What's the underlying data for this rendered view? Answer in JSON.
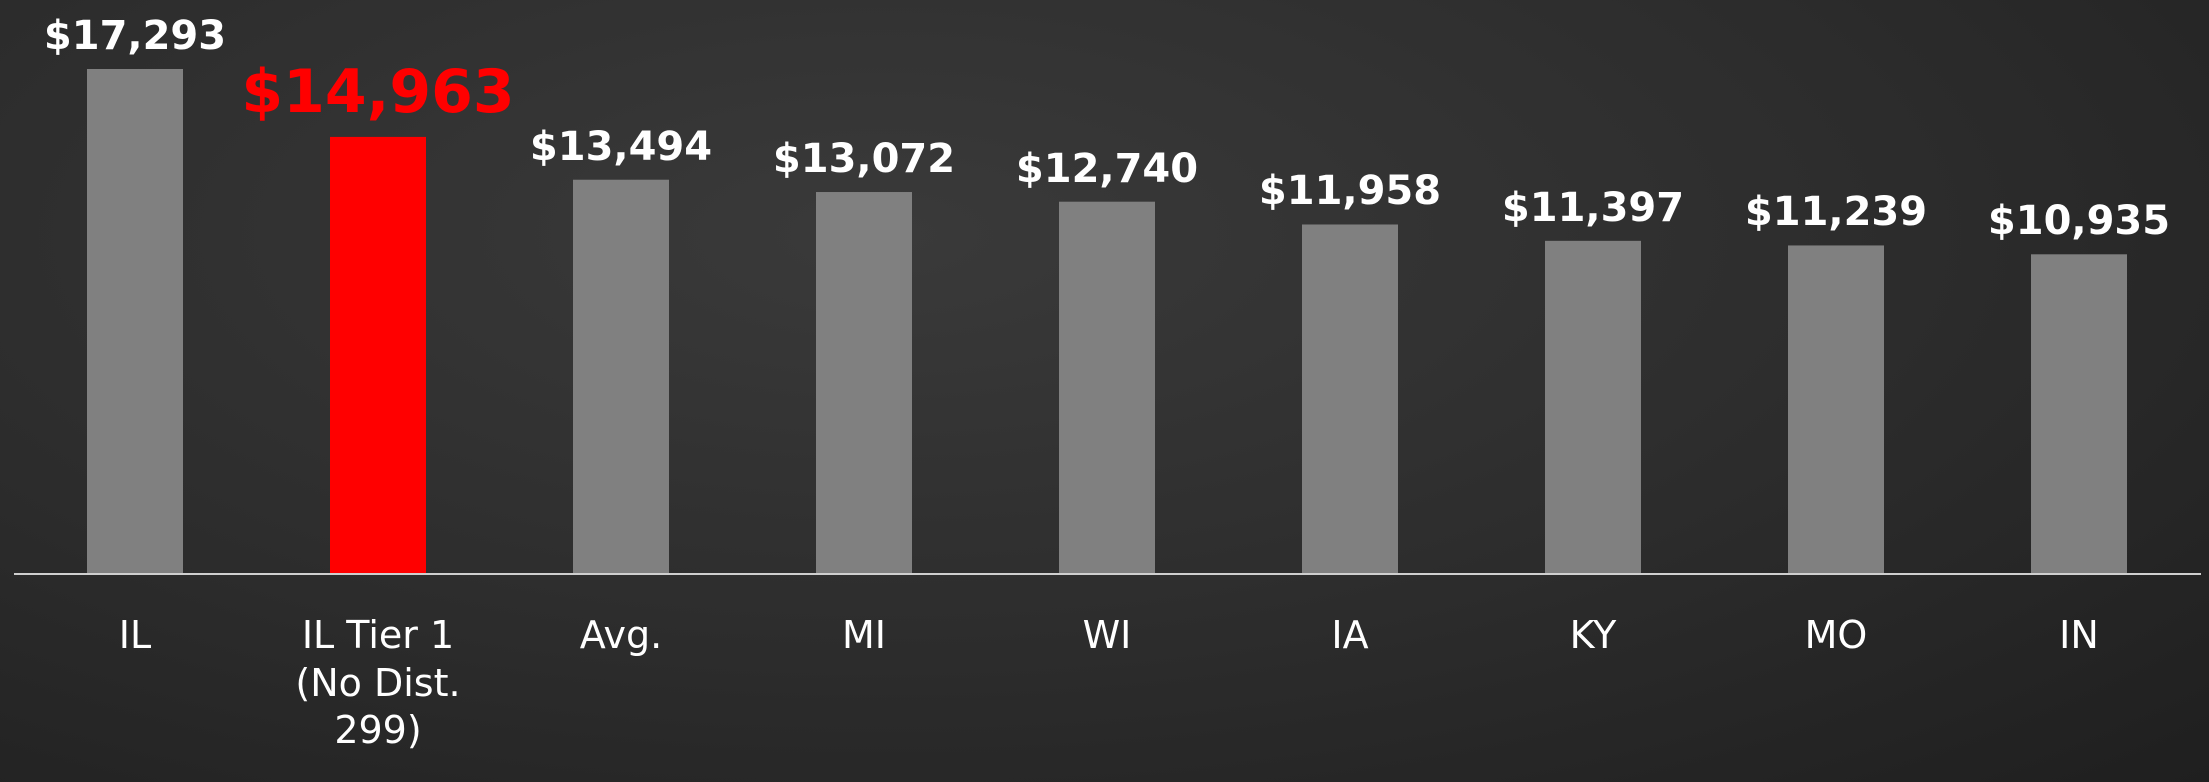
{
  "chart_data": {
    "type": "bar",
    "categories": [
      "IL",
      "IL Tier 1 (No Dist. 299)",
      "Avg.",
      "MI",
      "WI",
      "IA",
      "KY",
      "MO",
      "IN"
    ],
    "values": [
      17293,
      14963,
      13494,
      13072,
      12740,
      11958,
      11397,
      11239,
      10935
    ],
    "value_labels": [
      "$17,293",
      "$14,963",
      "$13,494",
      "$13,072",
      "$12,740",
      "$11,958",
      "$11,397",
      "$11,239",
      "$10,935"
    ],
    "colors": [
      "#808080",
      "#ff0000",
      "#808080",
      "#808080",
      "#808080",
      "#808080",
      "#808080",
      "#808080",
      "#808080"
    ],
    "label_colors": [
      "#ffffff",
      "#ff0000",
      "#ffffff",
      "#ffffff",
      "#ffffff",
      "#ffffff",
      "#ffffff",
      "#ffffff",
      "#ffffff"
    ]
  }
}
